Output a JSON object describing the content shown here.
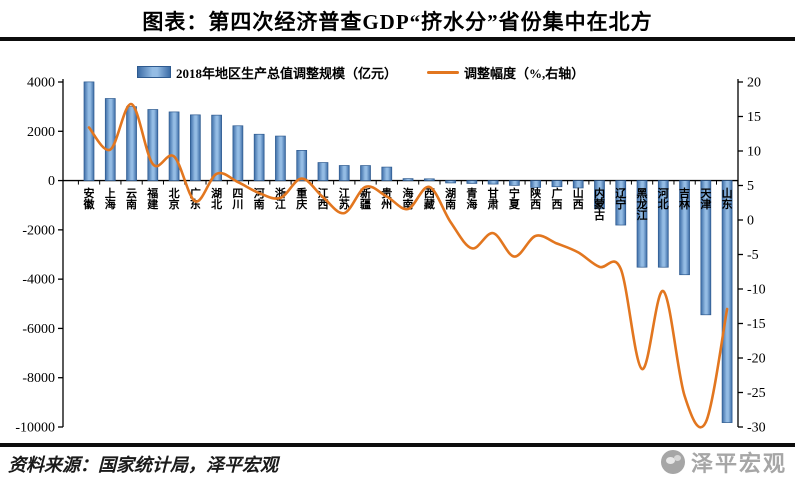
{
  "title": "图表：第四次经济普查GDP“挤水分”省份集中在北方",
  "legend": {
    "bar_label": "2018年地区生产总值调整规模（亿元）",
    "line_label": "调整幅度（%,右轴）"
  },
  "footer": {
    "source": "资料来源：国家统计局，泽平宏观",
    "watermark": "泽平宏观"
  },
  "chart_data": {
    "type": "bar",
    "subtype": "bar-line-dual-axis",
    "title": "图表：第四次经济普查GDP“挤水分”省份集中在北方",
    "categories": [
      "安徽",
      "上海",
      "云南",
      "福建",
      "北京",
      "广东",
      "湖北",
      "四川",
      "河南",
      "浙江",
      "重庆",
      "江西",
      "江苏",
      "新疆",
      "贵州",
      "海南",
      "西藏",
      "湖南",
      "青海",
      "甘肃",
      "宁夏",
      "陕西",
      "广西",
      "山西",
      "内蒙古",
      "辽宁",
      "黑龙江",
      "河北",
      "吉林",
      "天津",
      "山东"
    ],
    "series": [
      {
        "name": "2018年地区生产总值调整规模（亿元）",
        "type": "bar",
        "axis": "left",
        "unit": "亿元",
        "values": [
          4004,
          3330,
          3000,
          2884,
          2786,
          2667,
          2655,
          2224,
          1880,
          1806,
          1226,
          732,
          612,
          610,
          547,
          79,
          71,
          -96,
          -117,
          -142,
          -195,
          -280,
          -250,
          -300,
          -1148,
          -1805,
          -3515,
          -3516,
          -3821,
          -5447,
          -9821
        ]
      },
      {
        "name": "调整幅度（%,右轴）",
        "type": "line",
        "axis": "right",
        "unit": "%",
        "values": [
          13.4,
          10.2,
          16.8,
          8.1,
          9.2,
          2.7,
          6.7,
          5.5,
          3.9,
          3.2,
          6.0,
          3.3,
          1.0,
          4.8,
          3.4,
          1.6,
          4.8,
          -0.3,
          -4.1,
          -1.9,
          -5.3,
          -2.3,
          -3.4,
          -4.7,
          -6.8,
          -7.1,
          -21.6,
          -10.3,
          -25.5,
          -29.3,
          -12.9
        ]
      }
    ],
    "left_axis": {
      "min": -10000,
      "max": 4000,
      "step": 2000,
      "ticks": [
        4000,
        2000,
        0,
        -2000,
        -4000,
        -6000,
        -8000,
        -10000
      ]
    },
    "right_axis": {
      "min": -30,
      "max": 20,
      "step": 5,
      "ticks": [
        20,
        15,
        10,
        5,
        0,
        -5,
        -10,
        -15,
        -20,
        -25,
        -30
      ]
    },
    "grid": false,
    "legend_position": "top",
    "colors": {
      "bar_fill_dark": "#3c6ca6",
      "bar_fill_light": "#94bce4",
      "bar_stroke": "#2e5a8f",
      "line": "#e2761f",
      "axis": "#000000",
      "divider": "#0d0d0d",
      "watermark": "#a6a6a6"
    }
  }
}
